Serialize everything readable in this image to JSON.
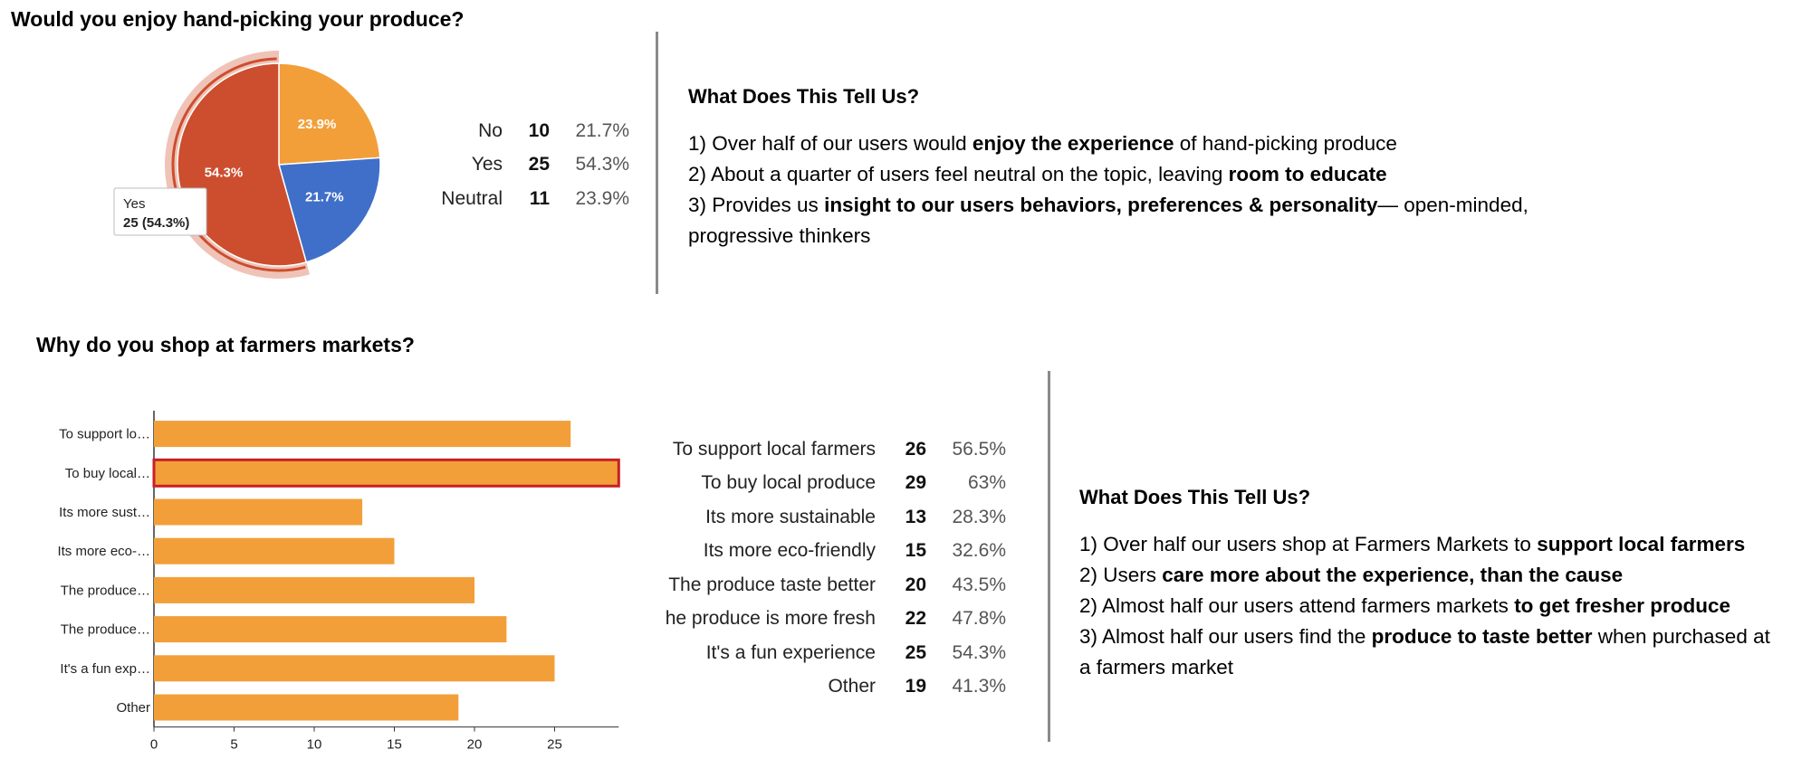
{
  "pie_section": {
    "title": "Would you enjoy hand-picking your produce?",
    "tooltip": {
      "label": "Yes",
      "value": "25 (54.3%)"
    },
    "stats": [
      {
        "label": "No",
        "count": "10",
        "pct": "21.7%"
      },
      {
        "label": "Yes",
        "count": "25",
        "pct": "54.3%"
      },
      {
        "label": "Neutral",
        "count": "11",
        "pct": "23.9%"
      }
    ],
    "insights": {
      "heading": "What Does This Tell Us?",
      "lines": [
        [
          {
            "t": "1) Over half of our users would ",
            "b": false
          },
          {
            "t": "enjoy the experience",
            "b": true
          },
          {
            "t": " of hand-picking produce",
            "b": false
          }
        ],
        [
          {
            "t": "2)  About a quarter of users feel neutral on the topic, leaving ",
            "b": false
          },
          {
            "t": "room to educate",
            "b": true
          }
        ],
        [
          {
            "t": "3)  Provides us ",
            "b": false
          },
          {
            "t": "insight to our users behaviors, preferences & personality",
            "b": true
          },
          {
            "t": "— open-minded,",
            "b": false
          }
        ],
        [
          {
            "t": "progressive thinkers",
            "b": false
          }
        ]
      ]
    }
  },
  "bar_section": {
    "title": "Why do you shop at farmers markets?",
    "stats": [
      {
        "label": "To support local farmers",
        "count": "26",
        "pct": "56.5%"
      },
      {
        "label": "To buy local produce",
        "count": "29",
        "pct": "63%"
      },
      {
        "label": "Its more sustainable",
        "count": "13",
        "pct": "28.3%"
      },
      {
        "label": "Its more eco-friendly",
        "count": "15",
        "pct": "32.6%"
      },
      {
        "label": "The produce taste better",
        "count": "20",
        "pct": "43.5%"
      },
      {
        "label": "he produce is more fresh",
        "count": "22",
        "pct": "47.8%"
      },
      {
        "label": "It's a fun experience",
        "count": "25",
        "pct": "54.3%"
      },
      {
        "label": "Other",
        "count": "19",
        "pct": "41.3%"
      }
    ],
    "insights": {
      "heading": "What Does This Tell Us?",
      "lines": [
        [
          {
            "t": "1) Over half our users shop at Farmers Markets to ",
            "b": false
          },
          {
            "t": "support local farmers",
            "b": true
          }
        ],
        [
          {
            "t": "2) Users ",
            "b": false
          },
          {
            "t": "care more about the experience, than the cause",
            "b": true
          }
        ],
        [
          {
            "t": "2) Almost half our users attend farmers markets ",
            "b": false
          },
          {
            "t": "to get fresher produce",
            "b": true
          }
        ],
        [
          {
            "t": "3) Almost half our users find the ",
            "b": false
          },
          {
            "t": "produce to taste better",
            "b": true
          },
          {
            "t": " when purchased at",
            "b": false
          }
        ],
        [
          {
            "t": " a farmers market",
            "b": false
          }
        ]
      ]
    }
  },
  "chart_data": [
    {
      "type": "pie",
      "title": "Would you enjoy hand-picking your produce?",
      "slices": [
        {
          "label": "No",
          "value": 10,
          "percent": 21.7,
          "color": "#3f6fc8"
        },
        {
          "label": "Yes",
          "value": 25,
          "percent": 54.3,
          "color": "#cc4e2e"
        },
        {
          "label": "Neutral",
          "value": 11,
          "percent": 23.9,
          "color": "#f29f3a"
        }
      ],
      "slice_labels": [
        "21.7%",
        "54.3%",
        "23.9%"
      ],
      "highlighted": "Yes"
    },
    {
      "type": "bar",
      "orientation": "horizontal",
      "title": "Why do you shop at farmers markets?",
      "categories": [
        "To support lo…",
        "To buy local…",
        "Its more sust…",
        "Its more eco-…",
        "The produce…",
        "The produce…",
        "It's a fun exp…",
        "Other"
      ],
      "values": [
        26,
        29,
        13,
        15,
        20,
        22,
        25,
        19
      ],
      "xlim": [
        0,
        29
      ],
      "xticks": [
        0,
        5,
        10,
        15,
        20,
        25
      ],
      "highlighted_index": 1,
      "bar_color": "#f29f3a",
      "highlight_color": "#c62026",
      "grid": false
    }
  ]
}
